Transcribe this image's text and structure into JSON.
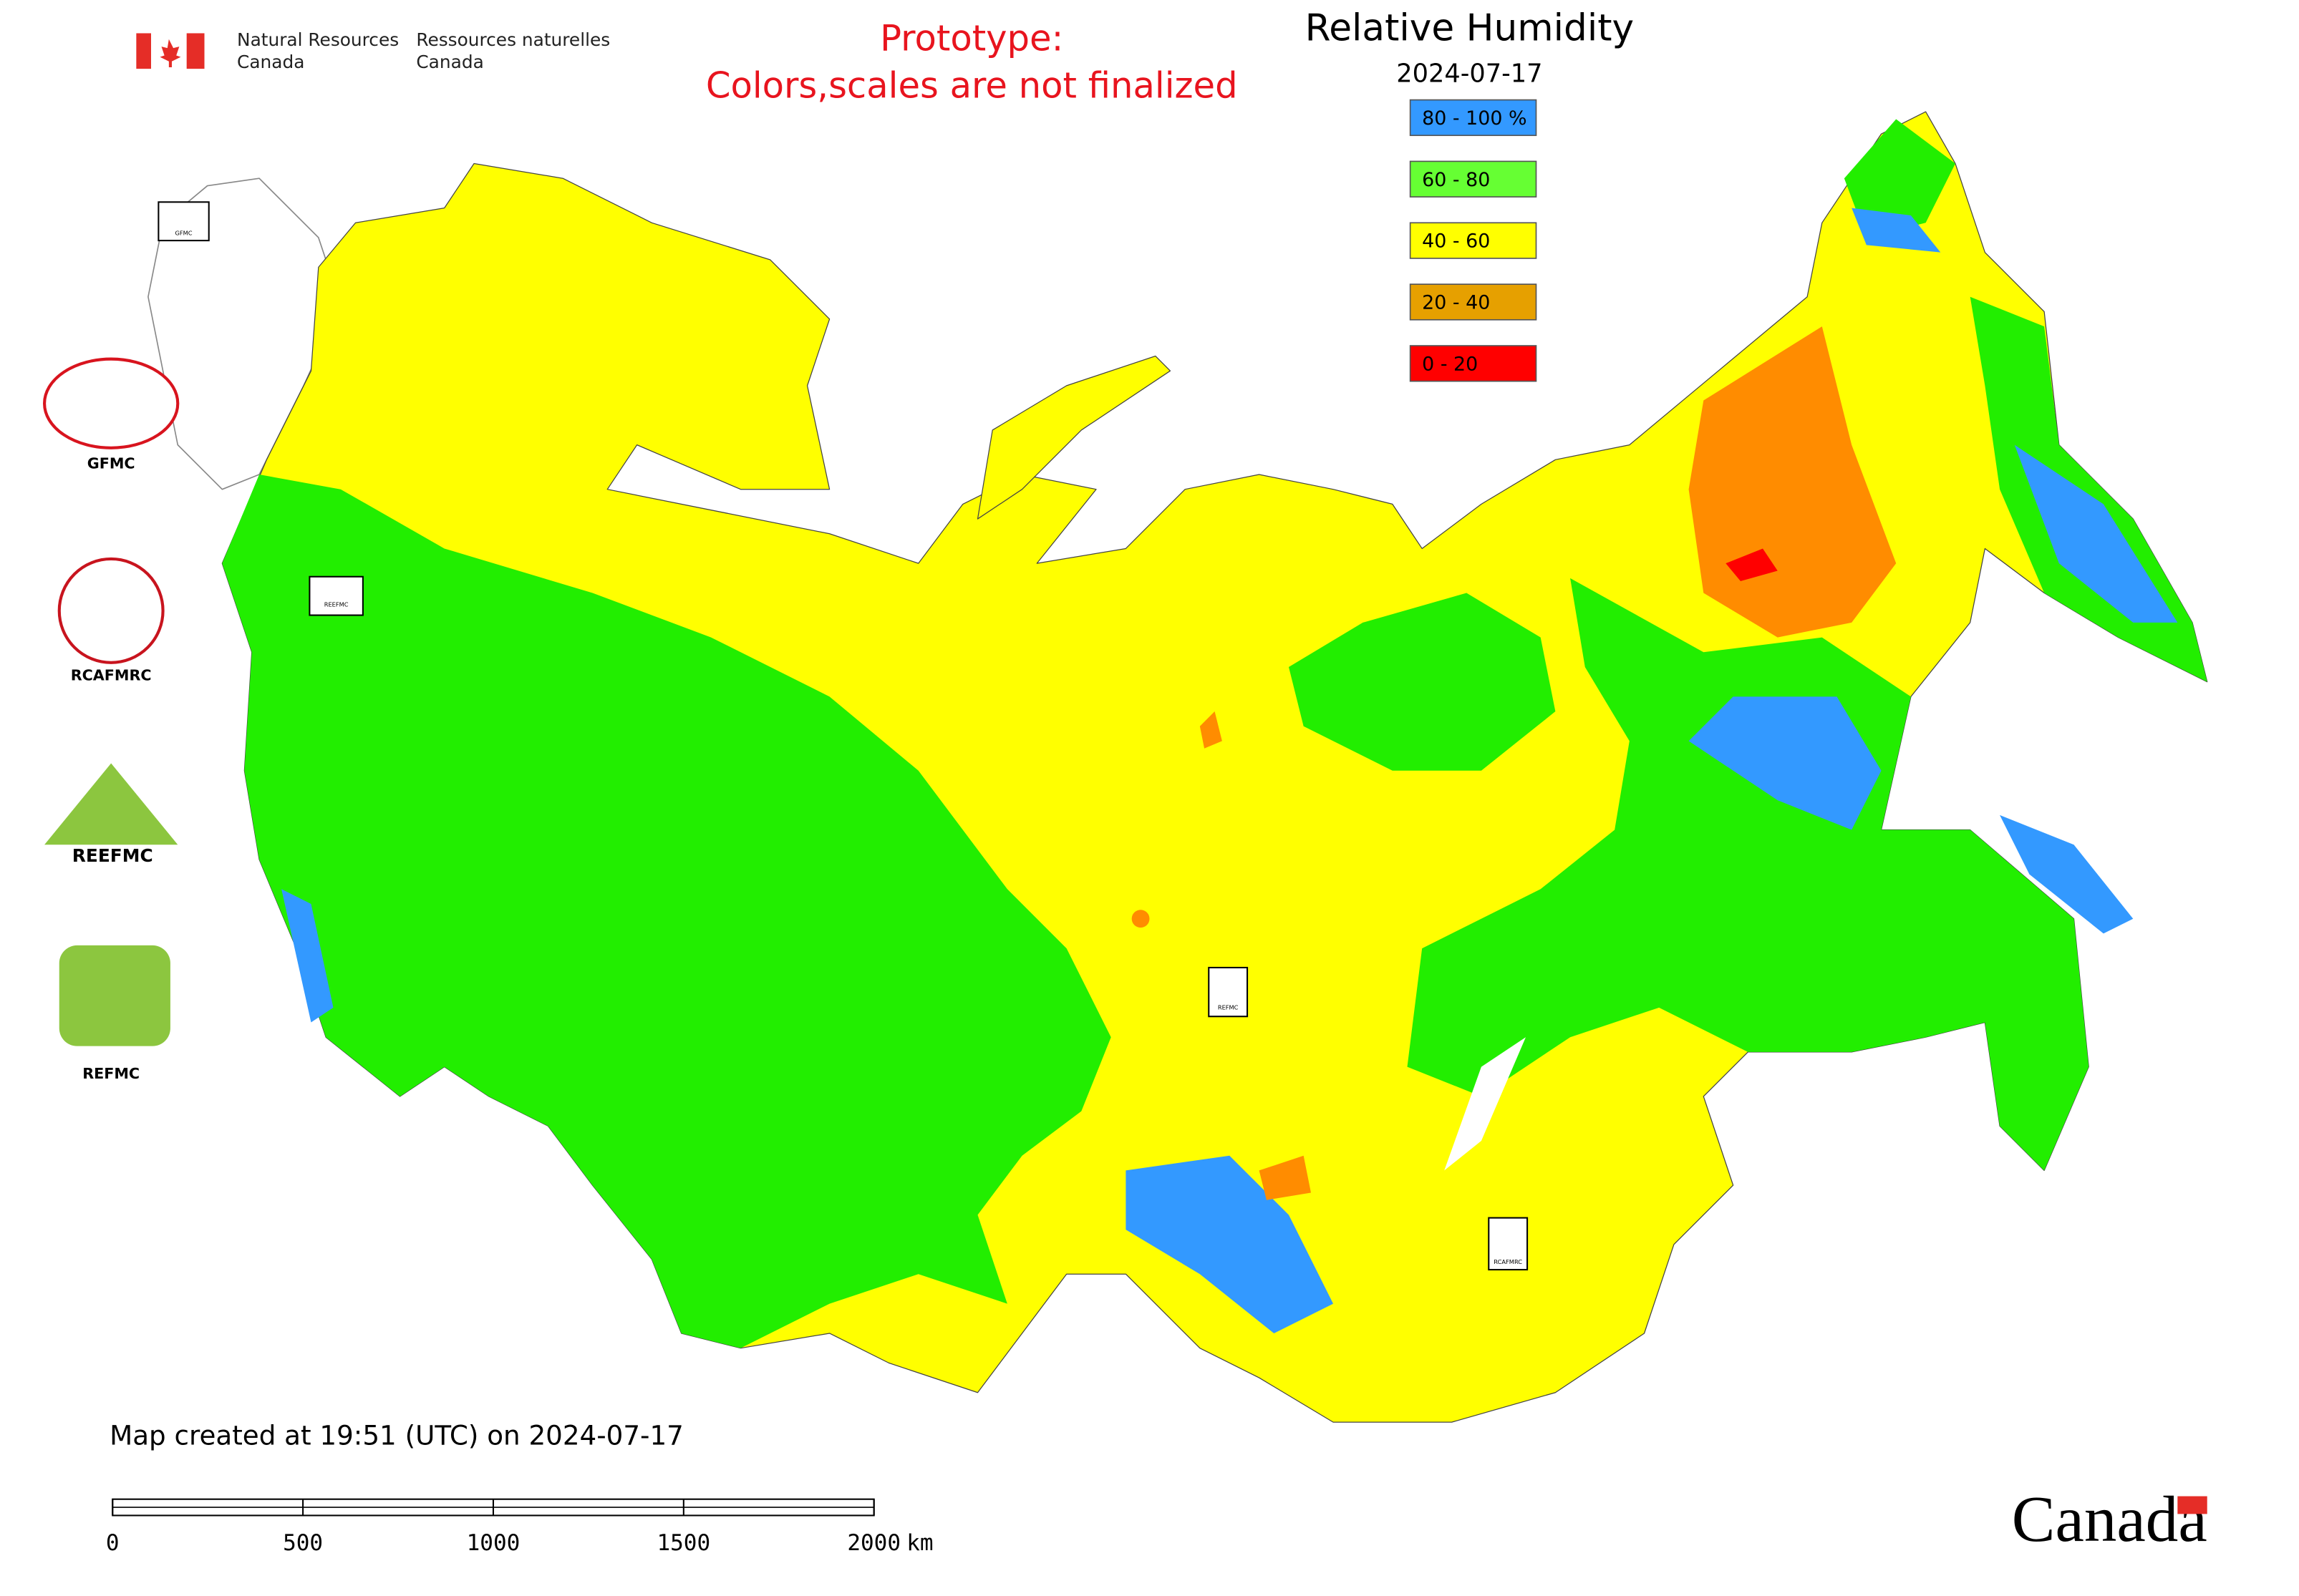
{
  "header": {
    "agency_en": [
      "Natural Resources",
      "Canada"
    ],
    "agency_fr": [
      "Ressources naturelles",
      "Canada"
    ]
  },
  "notice": [
    "Prototype:",
    "Colors,scales are not finalized"
  ],
  "title": "Relative Humidity",
  "date": "2024-07-17",
  "legend": [
    {
      "label": "80 - 100 %",
      "color": "#3399ff"
    },
    {
      "label": "60 - 80",
      "color": "#66ff33"
    },
    {
      "label": "40 - 60",
      "color": "#ffff00"
    },
    {
      "label": "20 - 40",
      "color": "#e6a000"
    },
    {
      "label": "0 - 20",
      "color": "#ff0000"
    }
  ],
  "logos": [
    "GFMC",
    "RCAFMRC",
    "REEFMC",
    "REFMC"
  ],
  "map_markers": [
    "GFMC",
    "REEFMC",
    "REFMC",
    "RCAFMRC"
  ],
  "footer": "Map created at 19:51 (UTC) on 2024-07-17",
  "scale_bar": {
    "ticks": [
      0,
      500,
      1000,
      1500,
      2000
    ],
    "unit": "km"
  },
  "wordmark": "Canada"
}
